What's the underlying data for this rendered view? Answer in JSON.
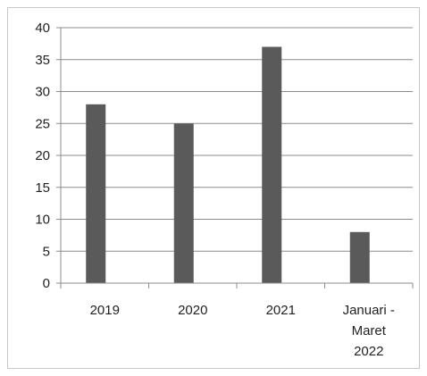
{
  "chart_data": {
    "type": "bar",
    "categories": [
      "2019",
      "2020",
      "2021",
      "Januari - Maret 2022"
    ],
    "category_lines": [
      [
        "2019"
      ],
      [
        "2020"
      ],
      [
        "2021"
      ],
      [
        "Januari -",
        "Maret",
        "2022"
      ]
    ],
    "values": [
      28,
      25,
      37,
      8
    ],
    "title": "",
    "xlabel": "",
    "ylabel": "",
    "ylim": [
      0,
      40
    ],
    "yticks": [
      0,
      5,
      10,
      15,
      20,
      25,
      30,
      35,
      40
    ],
    "grid": true,
    "legend": "none",
    "colors": {
      "bar": "#5a5a5a",
      "grid": "#8c8c8c",
      "axis": "#8c8c8c",
      "frame": "#c8c8c8"
    }
  }
}
